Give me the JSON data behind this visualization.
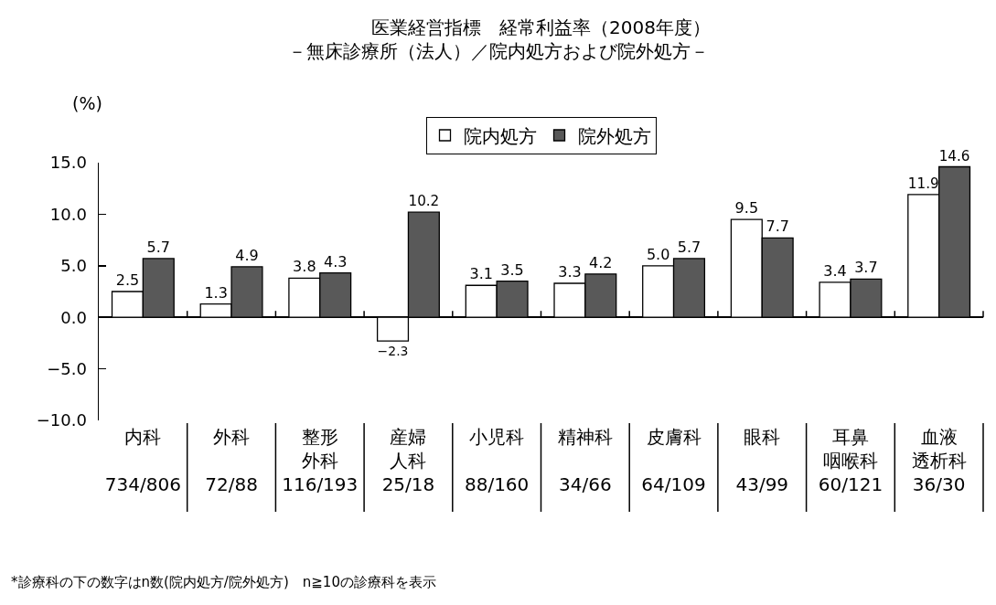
{
  "chart_data": {
    "type": "bar",
    "title": "医業経営指標　経常利益率（2008年度）",
    "subtitle": "－無床診療所（法人）／院内処方および院外処方－",
    "ylabel": "(%)",
    "categories": [
      "内科\n734/806",
      "外科\n72/88",
      "整形外科\n116/193",
      "産婦人科\n25/18",
      "小児科\n88/160",
      "精神科\n34/66",
      "皮膚科\n64/109",
      "眼科\n43/99",
      "耳鼻咽喉科\n60/121",
      "血液透析科\n36/30"
    ],
    "series": [
      {
        "name": "院内処方",
        "color": "#ffffff",
        "values": [
          2.5,
          1.3,
          3.8,
          -2.3,
          3.1,
          3.3,
          5.0,
          9.5,
          3.4,
          11.9
        ],
        "value_labels": [
          "2.5",
          "1.3",
          "3.8",
          "−2.3",
          "3.1",
          "3.3",
          "5.0",
          "9.5",
          "3.4",
          "11.9"
        ]
      },
      {
        "name": "院外処方",
        "color": "#595959",
        "values": [
          5.7,
          4.9,
          4.3,
          10.2,
          3.5,
          4.2,
          5.7,
          7.7,
          3.7,
          14.6
        ],
        "value_labels": [
          "5.7",
          "4.9",
          "4.3",
          "10.2",
          "3.5",
          "4.2",
          "5.7",
          "7.7",
          "3.7",
          "14.6"
        ]
      }
    ],
    "ylim": [
      -10,
      15
    ],
    "yticks": [
      {
        "value": -10,
        "label": "−10.0"
      },
      {
        "value": -5,
        "label": "−5.0"
      },
      {
        "value": 0,
        "label": "0.0"
      },
      {
        "value": 5,
        "label": "5.0"
      },
      {
        "value": 10,
        "label": "10.0"
      },
      {
        "value": 15,
        "label": "15.0"
      }
    ],
    "legend": "top",
    "annotations": [
      "*診療科の下の数字はn数(院内処方/院外処方)　n≧10の診療科を表示"
    ]
  }
}
